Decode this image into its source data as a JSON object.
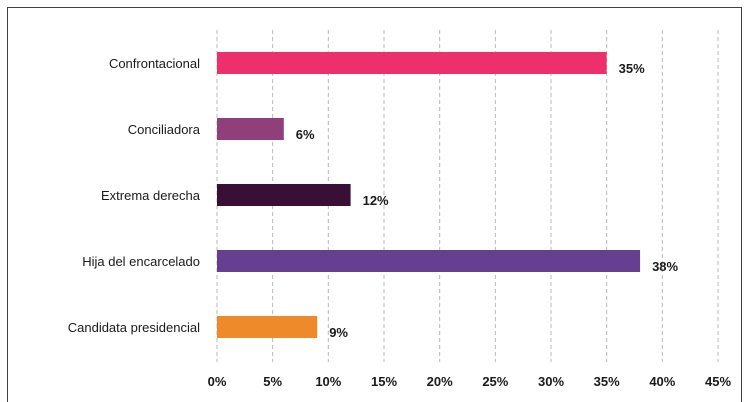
{
  "chart_data": {
    "type": "bar",
    "orientation": "horizontal",
    "categories": [
      "Confrontacional",
      "Conciliadora",
      "Extrema derecha",
      "Hija del encarcelado",
      "Candidata presidencial"
    ],
    "values": [
      35,
      6,
      12,
      38,
      9
    ],
    "value_labels": [
      "35%",
      "6%",
      "12%",
      "38%",
      "9%"
    ],
    "colors": [
      "#ee2f6d",
      "#8f3f7a",
      "#3a0f36",
      "#673f90",
      "#ee8a2a"
    ],
    "xlim": [
      0,
      45
    ],
    "xticks": [
      0,
      5,
      10,
      15,
      20,
      25,
      30,
      35,
      40,
      45
    ],
    "xtick_labels": [
      "0%",
      "5%",
      "10%",
      "15%",
      "20%",
      "25%",
      "30%",
      "35%",
      "40%",
      "45%"
    ],
    "grid": "vertical dashed",
    "legend": "none",
    "title": "",
    "xlabel": "",
    "ylabel": ""
  }
}
